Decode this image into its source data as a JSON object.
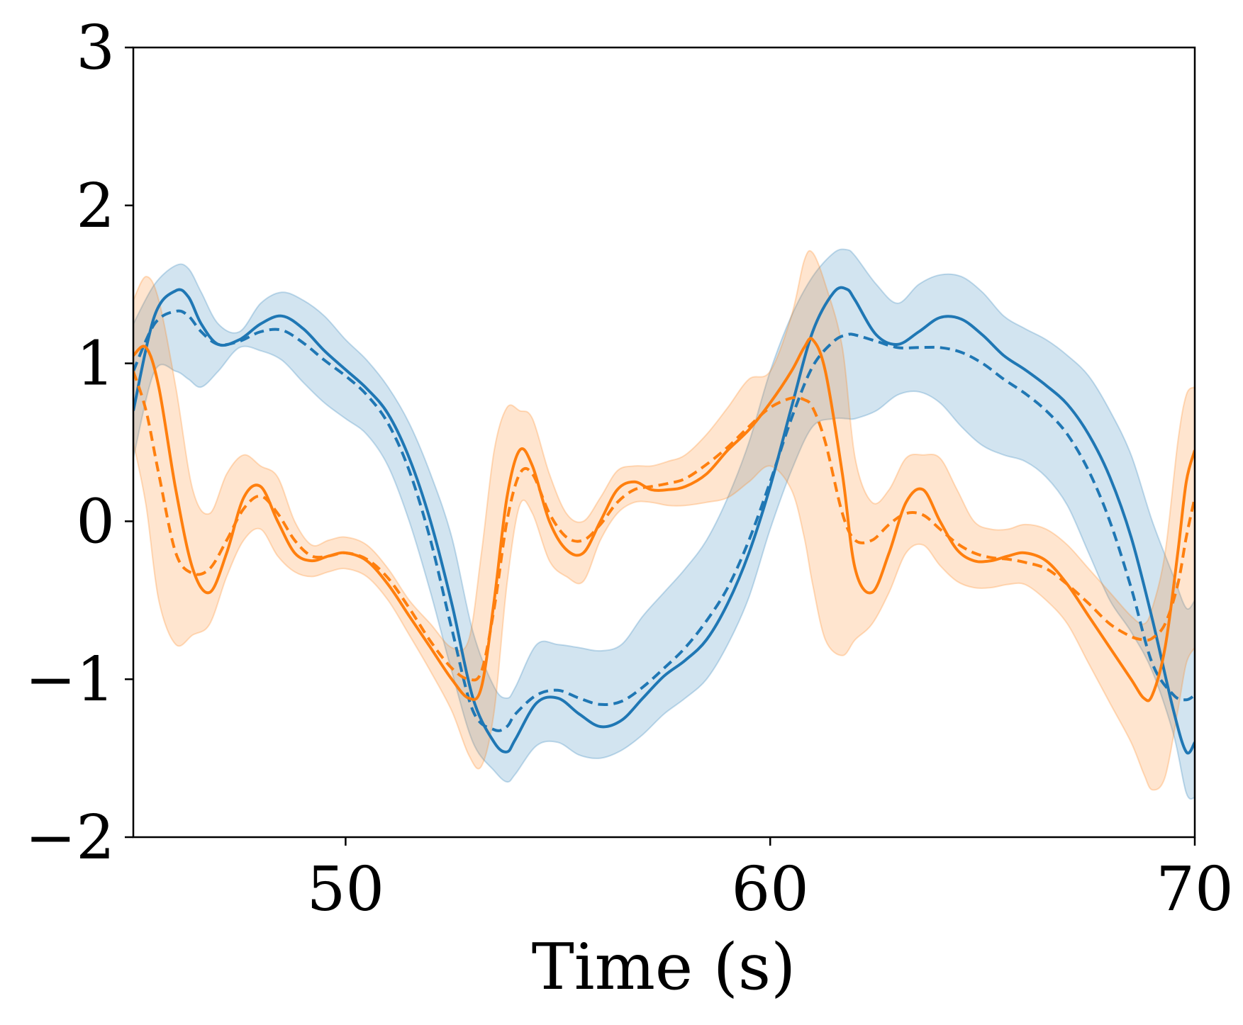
{
  "chart_data": {
    "type": "line",
    "title": "",
    "xlabel": "Time (s)",
    "ylabel": "",
    "xlim": [
      45,
      70
    ],
    "ylim": [
      -2,
      3
    ],
    "xticks": [
      50,
      60,
      70
    ],
    "xtick_labels": [
      "50",
      "60",
      "70"
    ],
    "yticks": [
      -2,
      -1,
      0,
      1,
      2,
      3
    ],
    "ytick_labels": [
      "−2",
      "−1",
      "0",
      "1",
      "2",
      "3"
    ],
    "grid": false,
    "colors": {
      "blue": "#1f77b4",
      "orange": "#ff7f0e"
    },
    "series": [
      {
        "name": "blue-solid",
        "color": "#1f77b4",
        "style": "solid",
        "x": [
          45.0,
          45.5,
          46.0,
          46.3,
          46.6,
          47.0,
          47.5,
          48.0,
          48.5,
          49.0,
          49.5,
          50.0,
          50.5,
          51.0,
          51.5,
          52.0,
          52.5,
          53.0,
          53.5,
          53.8,
          54.0,
          54.5,
          55.0,
          55.5,
          56.0,
          56.5,
          57.0,
          57.5,
          58.0,
          58.5,
          59.0,
          59.5,
          60.0,
          60.5,
          61.0,
          61.5,
          61.8,
          62.0,
          62.5,
          63.0,
          63.5,
          64.0,
          64.5,
          65.0,
          65.5,
          66.0,
          66.5,
          67.0,
          67.5,
          68.0,
          68.5,
          69.0,
          69.5,
          69.8,
          70.0
        ],
        "y": [
          0.7,
          1.3,
          1.46,
          1.42,
          1.25,
          1.12,
          1.15,
          1.25,
          1.3,
          1.22,
          1.08,
          0.96,
          0.84,
          0.68,
          0.4,
          0.0,
          -0.52,
          -1.12,
          -1.4,
          -1.46,
          -1.38,
          -1.15,
          -1.12,
          -1.22,
          -1.3,
          -1.26,
          -1.12,
          -0.98,
          -0.88,
          -0.75,
          -0.52,
          -0.2,
          0.22,
          0.72,
          1.2,
          1.45,
          1.47,
          1.4,
          1.18,
          1.12,
          1.2,
          1.29,
          1.28,
          1.18,
          1.05,
          0.96,
          0.86,
          0.74,
          0.55,
          0.28,
          -0.1,
          -0.62,
          -1.2,
          -1.46,
          -1.4
        ]
      },
      {
        "name": "blue-dashed",
        "color": "#1f77b4",
        "style": "dashed",
        "x": [
          45.0,
          45.5,
          46.0,
          46.3,
          46.6,
          47.0,
          47.5,
          48.0,
          48.5,
          49.0,
          49.5,
          50.0,
          50.5,
          51.0,
          51.5,
          52.0,
          52.5,
          53.0,
          53.5,
          53.8,
          54.0,
          54.5,
          55.0,
          55.5,
          56.0,
          56.5,
          57.0,
          57.5,
          58.0,
          58.5,
          59.0,
          59.5,
          60.0,
          60.5,
          61.0,
          61.5,
          61.8,
          62.0,
          62.5,
          63.0,
          63.5,
          64.0,
          64.5,
          65.0,
          65.5,
          66.0,
          66.5,
          67.0,
          67.5,
          68.0,
          68.5,
          69.0,
          69.5,
          69.8,
          70.0
        ],
        "y": [
          0.95,
          1.25,
          1.33,
          1.3,
          1.2,
          1.12,
          1.14,
          1.2,
          1.21,
          1.13,
          1.02,
          0.92,
          0.8,
          0.62,
          0.32,
          -0.12,
          -0.68,
          -1.2,
          -1.32,
          -1.3,
          -1.22,
          -1.1,
          -1.07,
          -1.12,
          -1.16,
          -1.14,
          -1.05,
          -0.93,
          -0.8,
          -0.63,
          -0.42,
          -0.12,
          0.25,
          0.65,
          0.98,
          1.14,
          1.18,
          1.18,
          1.14,
          1.1,
          1.1,
          1.1,
          1.07,
          1.0,
          0.9,
          0.81,
          0.7,
          0.55,
          0.32,
          0.0,
          -0.42,
          -0.9,
          -1.1,
          -1.13,
          -1.1
        ]
      },
      {
        "name": "orange-solid",
        "color": "#ff7f0e",
        "style": "solid",
        "x": [
          45.0,
          45.3,
          45.6,
          46.0,
          46.4,
          46.8,
          47.2,
          47.6,
          48.0,
          48.4,
          48.8,
          49.2,
          49.6,
          50.0,
          50.5,
          51.0,
          51.5,
          52.0,
          52.5,
          52.9,
          53.2,
          53.5,
          53.8,
          54.1,
          54.4,
          54.8,
          55.2,
          55.6,
          56.0,
          56.4,
          56.8,
          57.2,
          57.6,
          58.0,
          58.5,
          59.0,
          59.5,
          60.0,
          60.5,
          60.8,
          61.0,
          61.3,
          61.7,
          62.0,
          62.4,
          62.8,
          63.2,
          63.6,
          64.0,
          64.4,
          64.8,
          65.2,
          65.6,
          66.0,
          66.5,
          67.0,
          67.5,
          68.0,
          68.5,
          68.8,
          69.0,
          69.3,
          69.6,
          69.8,
          70.0
        ],
        "y": [
          1.05,
          1.1,
          0.85,
          0.2,
          -0.3,
          -0.45,
          -0.2,
          0.15,
          0.22,
          0.0,
          -0.2,
          -0.25,
          -0.22,
          -0.2,
          -0.25,
          -0.4,
          -0.6,
          -0.8,
          -1.0,
          -1.12,
          -1.05,
          -0.5,
          0.15,
          0.45,
          0.35,
          0.0,
          -0.18,
          -0.2,
          0.0,
          0.2,
          0.25,
          0.2,
          0.2,
          0.22,
          0.3,
          0.45,
          0.58,
          0.75,
          0.95,
          1.1,
          1.15,
          0.95,
          0.3,
          -0.3,
          -0.45,
          -0.2,
          0.12,
          0.2,
          0.0,
          -0.18,
          -0.25,
          -0.25,
          -0.22,
          -0.2,
          -0.25,
          -0.4,
          -0.6,
          -0.8,
          -1.0,
          -1.12,
          -1.1,
          -0.8,
          -0.2,
          0.25,
          0.45
        ]
      },
      {
        "name": "orange-dashed",
        "color": "#ff7f0e",
        "style": "dashed",
        "x": [
          45.0,
          45.3,
          45.6,
          46.0,
          46.4,
          46.8,
          47.2,
          47.6,
          48.0,
          48.4,
          48.8,
          49.2,
          49.6,
          50.0,
          50.5,
          51.0,
          51.5,
          52.0,
          52.5,
          52.9,
          53.2,
          53.5,
          53.8,
          54.1,
          54.4,
          54.8,
          55.2,
          55.6,
          56.0,
          56.4,
          56.8,
          57.2,
          57.6,
          58.0,
          58.5,
          59.0,
          59.5,
          60.0,
          60.5,
          60.8,
          61.0,
          61.3,
          61.7,
          62.0,
          62.4,
          62.8,
          63.2,
          63.6,
          64.0,
          64.4,
          64.8,
          65.2,
          65.6,
          66.0,
          66.5,
          67.0,
          67.5,
          68.0,
          68.5,
          68.8,
          69.0,
          69.3,
          69.6,
          69.8,
          70.0
        ],
        "y": [
          0.95,
          0.7,
          0.3,
          -0.2,
          -0.33,
          -0.3,
          -0.12,
          0.08,
          0.16,
          0.05,
          -0.12,
          -0.22,
          -0.22,
          -0.2,
          -0.24,
          -0.36,
          -0.55,
          -0.76,
          -0.93,
          -1.0,
          -0.95,
          -0.55,
          0.0,
          0.3,
          0.3,
          0.05,
          -0.1,
          -0.12,
          -0.02,
          0.12,
          0.2,
          0.22,
          0.24,
          0.27,
          0.36,
          0.47,
          0.6,
          0.72,
          0.78,
          0.77,
          0.72,
          0.5,
          0.05,
          -0.12,
          -0.12,
          -0.02,
          0.05,
          0.04,
          -0.05,
          -0.14,
          -0.2,
          -0.23,
          -0.24,
          -0.26,
          -0.3,
          -0.4,
          -0.52,
          -0.65,
          -0.73,
          -0.75,
          -0.74,
          -0.65,
          -0.4,
          -0.1,
          0.15
        ]
      }
    ],
    "bands": [
      {
        "name": "blue-band",
        "color": "#1f77b4",
        "x": [
          45.0,
          45.5,
          46.0,
          46.3,
          46.6,
          47.0,
          47.5,
          48.0,
          48.5,
          49.0,
          49.5,
          50.0,
          50.5,
          51.0,
          51.5,
          52.0,
          52.5,
          53.0,
          53.5,
          53.8,
          54.0,
          54.5,
          55.0,
          55.5,
          56.0,
          56.5,
          57.0,
          57.5,
          58.0,
          58.5,
          59.0,
          59.5,
          60.0,
          60.5,
          61.0,
          61.5,
          61.8,
          62.0,
          62.5,
          63.0,
          63.5,
          64.0,
          64.5,
          65.0,
          65.5,
          66.0,
          66.5,
          67.0,
          67.5,
          68.0,
          68.5,
          69.0,
          69.5,
          69.8,
          70.0
        ],
        "lower": [
          0.4,
          0.95,
          0.95,
          0.9,
          0.85,
          0.95,
          1.1,
          1.08,
          1.02,
          0.88,
          0.75,
          0.65,
          0.55,
          0.35,
          0.0,
          -0.45,
          -0.95,
          -1.4,
          -1.58,
          -1.65,
          -1.6,
          -1.42,
          -1.4,
          -1.48,
          -1.5,
          -1.45,
          -1.35,
          -1.22,
          -1.12,
          -1.0,
          -0.78,
          -0.48,
          -0.05,
          0.32,
          0.6,
          0.65,
          0.65,
          0.65,
          0.7,
          0.8,
          0.82,
          0.75,
          0.6,
          0.48,
          0.42,
          0.38,
          0.28,
          0.1,
          -0.2,
          -0.5,
          -0.7,
          -0.95,
          -1.35,
          -1.72,
          -1.75
        ],
        "upper": [
          1.25,
          1.5,
          1.62,
          1.6,
          1.45,
          1.25,
          1.2,
          1.38,
          1.45,
          1.4,
          1.3,
          1.15,
          1.02,
          0.85,
          0.62,
          0.3,
          -0.1,
          -0.7,
          -1.05,
          -1.12,
          -1.05,
          -0.78,
          -0.78,
          -0.8,
          -0.82,
          -0.78,
          -0.6,
          -0.45,
          -0.3,
          -0.12,
          0.15,
          0.5,
          0.95,
          1.3,
          1.55,
          1.7,
          1.72,
          1.68,
          1.5,
          1.38,
          1.5,
          1.56,
          1.55,
          1.45,
          1.3,
          1.22,
          1.15,
          1.05,
          0.92,
          0.7,
          0.42,
          0.0,
          -0.35,
          -0.55,
          -0.5
        ]
      },
      {
        "name": "orange-band",
        "color": "#ff7f0e",
        "x": [
          45.0,
          45.3,
          45.6,
          46.0,
          46.4,
          46.8,
          47.2,
          47.6,
          48.0,
          48.4,
          48.8,
          49.2,
          49.6,
          50.0,
          50.5,
          51.0,
          51.5,
          52.0,
          52.5,
          52.9,
          53.2,
          53.5,
          53.8,
          54.1,
          54.4,
          54.8,
          55.2,
          55.6,
          56.0,
          56.4,
          56.8,
          57.2,
          57.6,
          58.0,
          58.5,
          59.0,
          59.5,
          60.0,
          60.5,
          60.8,
          61.0,
          61.3,
          61.7,
          62.0,
          62.4,
          62.8,
          63.2,
          63.6,
          64.0,
          64.4,
          64.8,
          65.2,
          65.6,
          66.0,
          66.5,
          67.0,
          67.5,
          68.0,
          68.5,
          68.8,
          69.0,
          69.3,
          69.6,
          69.8,
          70.0
        ],
        "lower": [
          0.5,
          0.1,
          -0.5,
          -0.78,
          -0.72,
          -0.65,
          -0.35,
          -0.12,
          -0.05,
          -0.22,
          -0.32,
          -0.35,
          -0.32,
          -0.3,
          -0.35,
          -0.5,
          -0.72,
          -0.95,
          -1.2,
          -1.48,
          -1.55,
          -1.2,
          -0.4,
          0.1,
          0.05,
          -0.25,
          -0.35,
          -0.38,
          -0.12,
          0.05,
          0.12,
          0.12,
          0.1,
          0.1,
          0.12,
          0.15,
          0.25,
          0.35,
          0.2,
          -0.1,
          -0.4,
          -0.75,
          -0.85,
          -0.75,
          -0.65,
          -0.45,
          -0.2,
          -0.15,
          -0.28,
          -0.38,
          -0.42,
          -0.42,
          -0.4,
          -0.4,
          -0.5,
          -0.65,
          -0.9,
          -1.15,
          -1.4,
          -1.6,
          -1.7,
          -1.62,
          -1.2,
          -0.9,
          -0.8
        ],
        "upper": [
          1.4,
          1.55,
          1.4,
          0.85,
          0.2,
          0.05,
          0.3,
          0.42,
          0.35,
          0.28,
          0.0,
          -0.15,
          -0.12,
          -0.1,
          -0.15,
          -0.3,
          -0.5,
          -0.65,
          -0.8,
          -0.75,
          -0.2,
          0.45,
          0.72,
          0.7,
          0.65,
          0.3,
          0.05,
          0.0,
          0.15,
          0.32,
          0.35,
          0.35,
          0.38,
          0.42,
          0.55,
          0.72,
          0.9,
          0.95,
          1.3,
          1.65,
          1.7,
          1.5,
          1.1,
          0.4,
          0.12,
          0.2,
          0.4,
          0.42,
          0.4,
          0.2,
          0.0,
          -0.05,
          -0.05,
          -0.02,
          -0.05,
          -0.15,
          -0.3,
          -0.45,
          -0.6,
          -0.65,
          -0.55,
          -0.2,
          0.5,
          0.8,
          0.85
        ]
      }
    ]
  }
}
